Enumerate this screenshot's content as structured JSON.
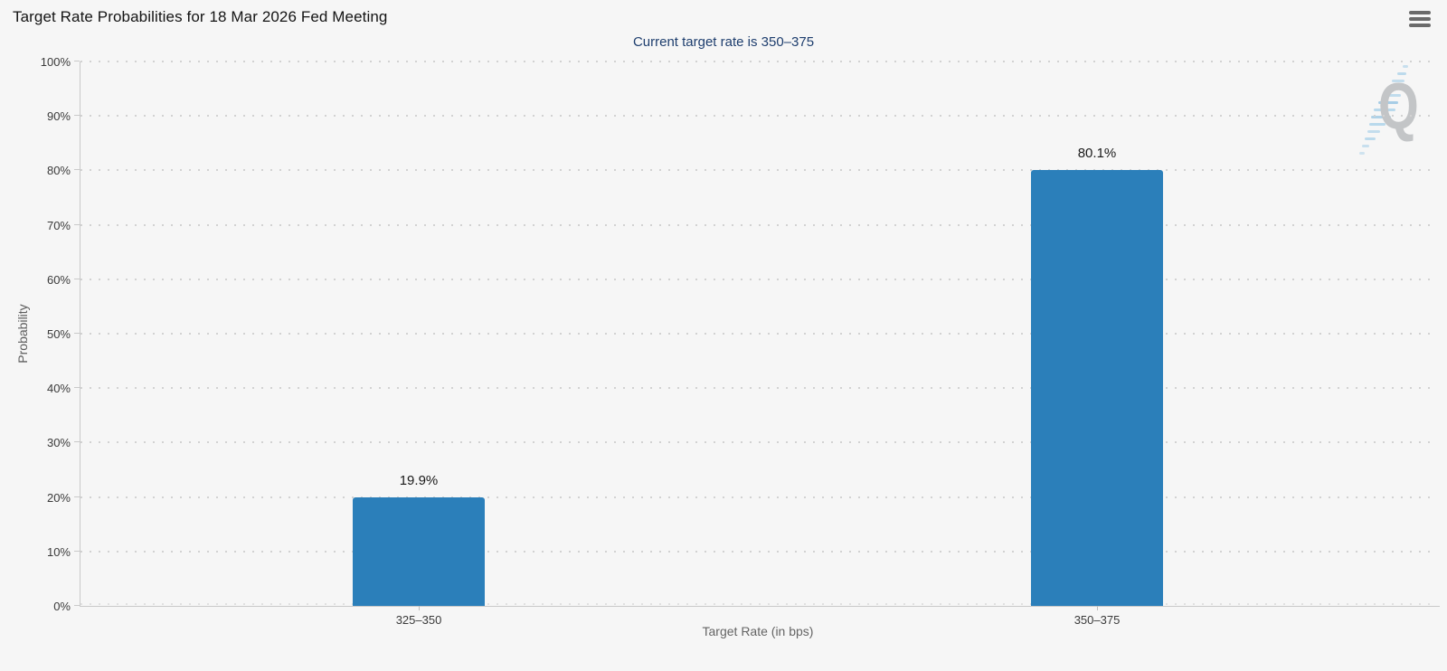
{
  "header": {
    "title": "Target Rate Probabilities for 18 Mar 2026 Fed Meeting"
  },
  "icons": {
    "menu": "hamburger-menu-icon",
    "watermark": "quikstrike-q-watermark"
  },
  "chart": {
    "subtitle": "Current target rate is 350–375",
    "watermark_letter": "Q",
    "y_axis": {
      "title": "Probability",
      "ticks": [
        {
          "value": 0,
          "label": "0%"
        },
        {
          "value": 10,
          "label": "10%"
        },
        {
          "value": 20,
          "label": "20%"
        },
        {
          "value": 30,
          "label": "30%"
        },
        {
          "value": 40,
          "label": "40%"
        },
        {
          "value": 50,
          "label": "50%"
        },
        {
          "value": 60,
          "label": "60%"
        },
        {
          "value": 70,
          "label": "70%"
        },
        {
          "value": 80,
          "label": "80%"
        },
        {
          "value": 90,
          "label": "90%"
        },
        {
          "value": 100,
          "label": "100%"
        }
      ]
    },
    "x_axis": {
      "title": "Target Rate (in bps)"
    }
  },
  "chart_data": {
    "type": "bar",
    "title": "Target Rate Probabilities for 18 Mar 2026 Fed Meeting",
    "subtitle": "Current target rate is 350-375",
    "categories": [
      "325–350",
      "350–375"
    ],
    "values": [
      19.9,
      80.1
    ],
    "value_labels": [
      "19.9%",
      "80.1%"
    ],
    "xlabel": "Target Rate (in bps)",
    "ylabel": "Probability",
    "ylim": [
      0,
      100
    ],
    "y_tick_step": 10,
    "grid": "dotted horizontal",
    "legend": "none",
    "bar_color": "#2b7fba"
  },
  "colors": {
    "background": "#f6f6f6",
    "bar": "#2b7fba",
    "subtitle_text": "#1e3e6e",
    "axis_line": "#c9c9c9",
    "grid_dot": "#d2d2d2",
    "tick_text": "#3a3a3a",
    "axis_title_text": "#5e5e5e",
    "menu_icon": "#6a6a6a",
    "watermark_q": "#c3c5c7",
    "watermark_streak": "#aed3ea"
  }
}
